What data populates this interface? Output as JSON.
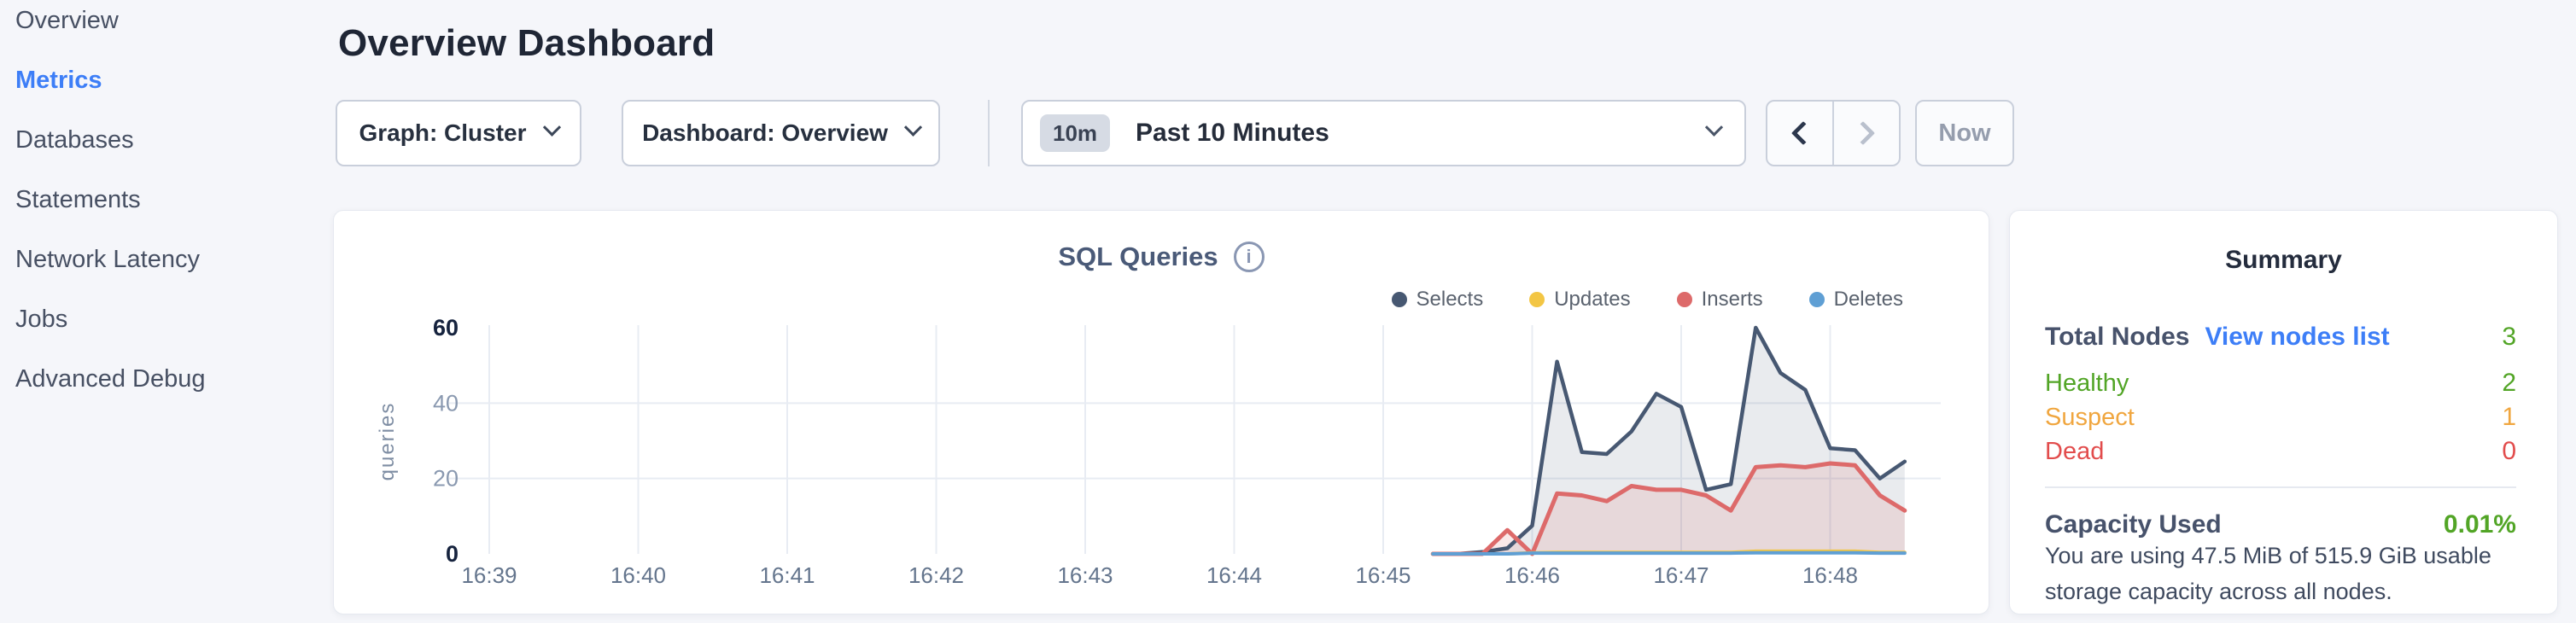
{
  "sidebar": {
    "items": [
      {
        "label": "Overview",
        "active": false
      },
      {
        "label": "Metrics",
        "active": true
      },
      {
        "label": "Databases",
        "active": false
      },
      {
        "label": "Statements",
        "active": false
      },
      {
        "label": "Network Latency",
        "active": false
      },
      {
        "label": "Jobs",
        "active": false
      },
      {
        "label": "Advanced Debug",
        "active": false
      }
    ]
  },
  "header": {
    "title": "Overview Dashboard",
    "graph_dropdown": {
      "label": "Graph: Cluster"
    },
    "dashboard_dropdown": {
      "label": "Dashboard: Overview"
    },
    "time_picker": {
      "badge": "10m",
      "label": "Past 10 Minutes"
    },
    "prev_button": "previous interval",
    "next_button": "next interval",
    "now_button": "Now"
  },
  "chart_data": {
    "type": "area-line",
    "title": "SQL Queries",
    "ylabel": "queries",
    "ylim": [
      0,
      60
    ],
    "y_ticks": [
      0,
      20,
      40,
      60
    ],
    "x_ticks": [
      "16:39",
      "16:40",
      "16:41",
      "16:42",
      "16:43",
      "16:44",
      "16:45",
      "16:46",
      "16:47",
      "16:48"
    ],
    "grid": true,
    "legend_position": "top-right",
    "axis_start": "16:39",
    "times": [
      "16:45:20",
      "16:45:30",
      "16:45:40",
      "16:45:50",
      "16:46:00",
      "16:46:10",
      "16:46:20",
      "16:46:30",
      "16:46:40",
      "16:46:50",
      "16:47:00",
      "16:47:10",
      "16:47:20",
      "16:47:30",
      "16:47:40",
      "16:47:50",
      "16:48:00",
      "16:48:10",
      "16:48:20",
      "16:48:30"
    ],
    "series": [
      {
        "name": "Selects",
        "color": "#475872",
        "fill": "rgba(71,88,114,0.12)",
        "stroke_width": 4.5,
        "values": [
          0,
          0,
          0.5,
          1.5,
          7.5,
          51,
          27,
          26.5,
          32.5,
          42.5,
          39,
          17,
          18.5,
          60,
          48,
          43.5,
          28,
          27.5,
          20,
          24.5
        ]
      },
      {
        "name": "Updates",
        "color": "#f3c644",
        "fill": "none",
        "stroke_width": 4,
        "values": [
          0,
          0,
          0,
          0,
          0.3,
          0.4,
          0.4,
          0.4,
          0.4,
          0.4,
          0.4,
          0.4,
          0.4,
          0.7,
          0.7,
          0.7,
          0.7,
          0.7,
          0.4,
          0.4
        ]
      },
      {
        "name": "Inserts",
        "color": "#dd6a6a",
        "fill": "rgba(221,106,106,0.15)",
        "stroke_width": 5,
        "values": [
          0,
          0,
          0,
          6.3,
          0,
          16,
          15.5,
          14,
          18,
          17,
          17,
          15.5,
          11.5,
          23,
          23.5,
          23,
          24,
          23.5,
          15.5,
          11.5
        ]
      },
      {
        "name": "Deletes",
        "color": "#5f9fd4",
        "fill": "none",
        "stroke_width": 4,
        "values": [
          0,
          0,
          0,
          0,
          0.2,
          0.2,
          0.2,
          0.2,
          0.2,
          0.2,
          0.2,
          0.2,
          0.2,
          0.3,
          0.3,
          0.3,
          0.3,
          0.3,
          0.2,
          0.2
        ]
      }
    ]
  },
  "summary": {
    "title": "Summary",
    "total_nodes": {
      "label": "Total Nodes",
      "link": "View nodes list",
      "value": "3",
      "color": "#52a526"
    },
    "statuses": [
      {
        "label": "Healthy",
        "value": "2",
        "color": "#52a526"
      },
      {
        "label": "Suspect",
        "value": "1",
        "color": "#f0a63f"
      },
      {
        "label": "Dead",
        "value": "0",
        "color": "#e24c4c"
      }
    ],
    "capacity": {
      "label": "Capacity Used",
      "value": "0.01%",
      "value_color": "#52a526",
      "description": "You are using 47.5 MiB of 515.9 GiB usable storage capacity across all nodes."
    }
  }
}
